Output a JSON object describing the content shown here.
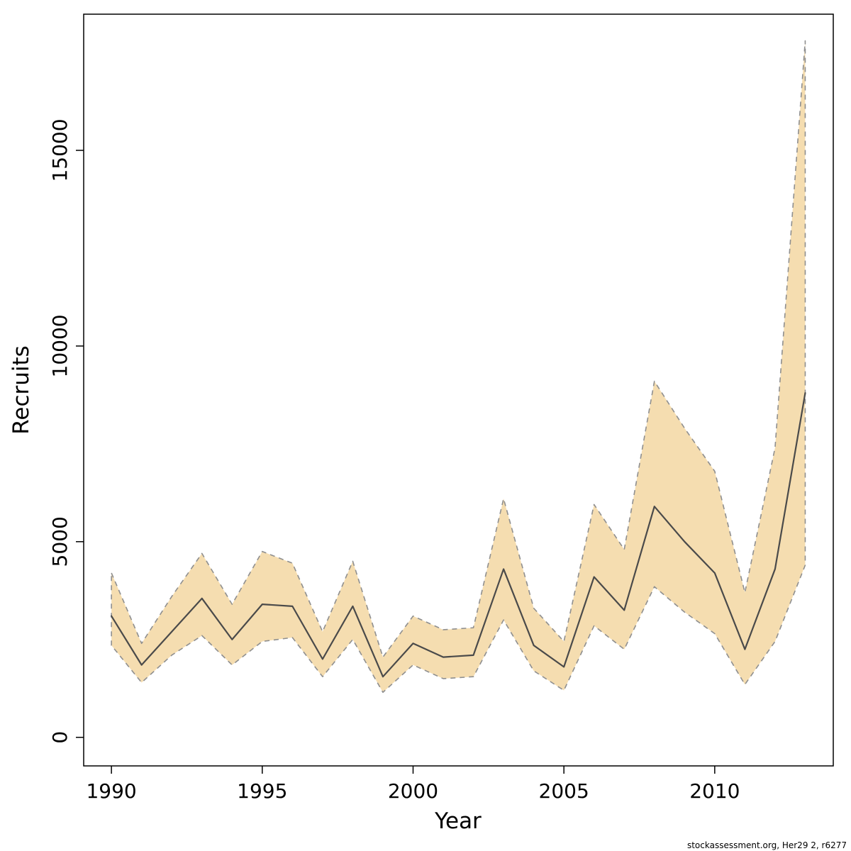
{
  "watermark": "stockassessment.org, Her29 2, r6277",
  "chart_data": {
    "type": "line",
    "title": "",
    "xlabel": "Year",
    "ylabel": "Recruits",
    "grid": false,
    "legend": "none",
    "band_color": "#f5ddb0",
    "band_border_color": "#8f8f8f",
    "line_color": "#4a4a4a",
    "xlim": [
      1989.08,
      2013.93
    ],
    "ylim": [
      -730,
      18480
    ],
    "xticks": [
      1990,
      1995,
      2000,
      2005,
      2010
    ],
    "yticks": [
      0,
      5000,
      10000,
      15000
    ],
    "x": [
      1990,
      1991,
      1992,
      1993,
      1994,
      1995,
      1996,
      1997,
      1998,
      1999,
      2000,
      2001,
      2002,
      2003,
      2004,
      2005,
      2006,
      2007,
      2008,
      2009,
      2010,
      2011,
      2012,
      2013
    ],
    "series": [
      {
        "name": "estimate",
        "values": [
          3100,
          1850,
          2700,
          3550,
          2500,
          3400,
          3350,
          2000,
          3350,
          1550,
          2400,
          2050,
          2100,
          4300,
          2350,
          1800,
          4100,
          3250,
          5900,
          5000,
          4200,
          2250,
          4300,
          8800
        ]
      },
      {
        "name": "lower_95",
        "values": [
          2350,
          1400,
          2100,
          2600,
          1850,
          2450,
          2550,
          1550,
          2500,
          1150,
          1850,
          1500,
          1550,
          3000,
          1700,
          1200,
          2850,
          2250,
          3850,
          3200,
          2650,
          1350,
          2450,
          4400
        ]
      },
      {
        "name": "upper_95",
        "values": [
          4200,
          2400,
          3600,
          4700,
          3400,
          4750,
          4450,
          2700,
          4500,
          2050,
          3100,
          2750,
          2800,
          6100,
          3300,
          2450,
          5950,
          4800,
          9100,
          7900,
          6800,
          3700,
          7400,
          17800
        ]
      }
    ]
  }
}
